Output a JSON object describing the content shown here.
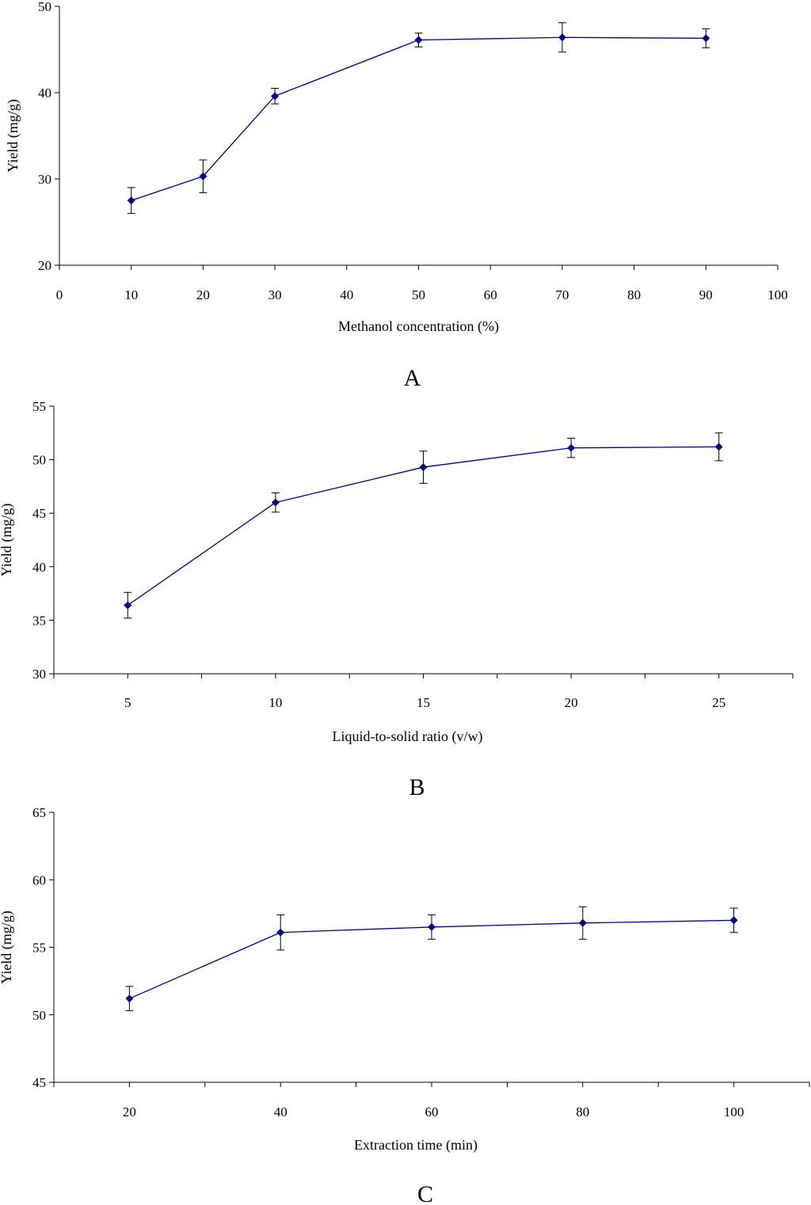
{
  "colors": {
    "series": "#00008B",
    "axis": "#000000"
  },
  "chart_data": [
    {
      "type": "line",
      "panel_label": "A",
      "xlabel": "Methanol concentration (%)",
      "ylabel": "Yield (mg/g)",
      "xlim": [
        0,
        100
      ],
      "ylim": [
        20,
        50
      ],
      "xticks": [
        0,
        10,
        20,
        30,
        40,
        50,
        60,
        70,
        80,
        90,
        100
      ],
      "yticks": [
        20,
        30,
        40,
        50
      ],
      "x": [
        10,
        20,
        30,
        50,
        70,
        90
      ],
      "y": [
        27.5,
        30.3,
        39.6,
        46.1,
        46.4,
        46.3
      ],
      "error": [
        1.5,
        1.9,
        0.9,
        0.8,
        1.7,
        1.1
      ]
    },
    {
      "type": "line",
      "panel_label": "B",
      "xlabel": "Liquid-to-solid ratio (v/w)",
      "ylabel": "Yield (mg/g)",
      "xlim": [
        2.5,
        27.5
      ],
      "ylim": [
        30,
        55
      ],
      "xticks": [
        5,
        10,
        15,
        20,
        25
      ],
      "yticks": [
        30,
        35,
        40,
        45,
        50,
        55
      ],
      "x": [
        5,
        10,
        15,
        20,
        25
      ],
      "y": [
        36.4,
        46.0,
        49.3,
        51.1,
        51.2
      ],
      "error": [
        1.2,
        0.9,
        1.5,
        0.9,
        1.3
      ]
    },
    {
      "type": "line",
      "panel_label": "C",
      "xlabel": "Extraction time (min)",
      "ylabel": "Yield (mg/g)",
      "xlim": [
        10,
        110
      ],
      "ylim": [
        45,
        65
      ],
      "xticks": [
        20,
        40,
        60,
        80,
        100
      ],
      "yticks": [
        45,
        50,
        55,
        60,
        65
      ],
      "x": [
        20,
        40,
        60,
        80,
        100
      ],
      "y": [
        51.2,
        56.1,
        56.5,
        56.8,
        57.0
      ],
      "error": [
        0.9,
        1.3,
        0.9,
        1.2,
        0.9
      ]
    }
  ]
}
